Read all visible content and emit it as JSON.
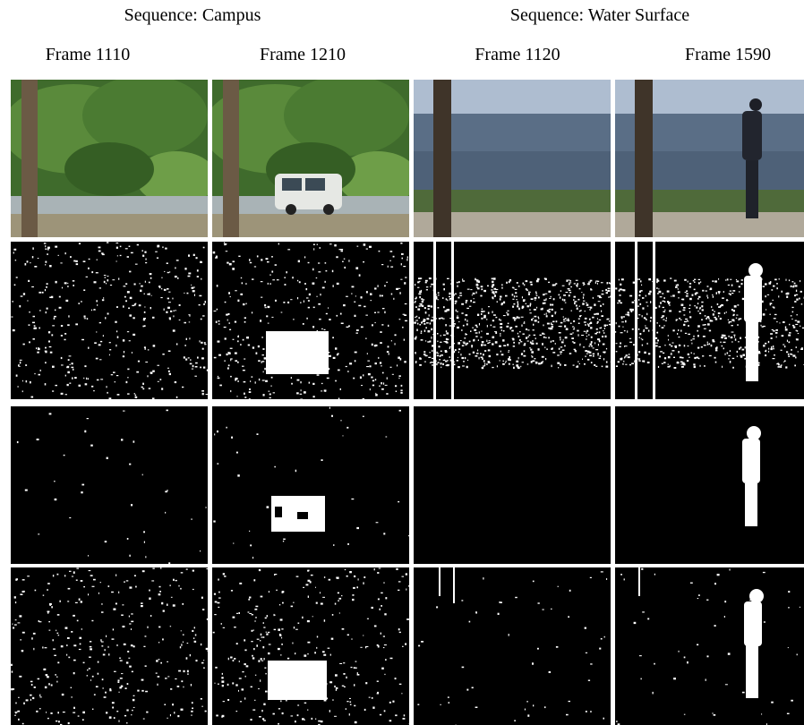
{
  "sequences": [
    {
      "title": "Sequence: Campus"
    },
    {
      "title": "Sequence: Water Surface"
    }
  ],
  "frames": [
    "Frame 1110",
    "Frame 1210",
    "Frame 1120",
    "Frame 1590"
  ],
  "grid": {
    "row_count": 4,
    "column_count": 4,
    "rows": [
      "original-frame",
      "result-a",
      "result-b",
      "result-c"
    ]
  }
}
